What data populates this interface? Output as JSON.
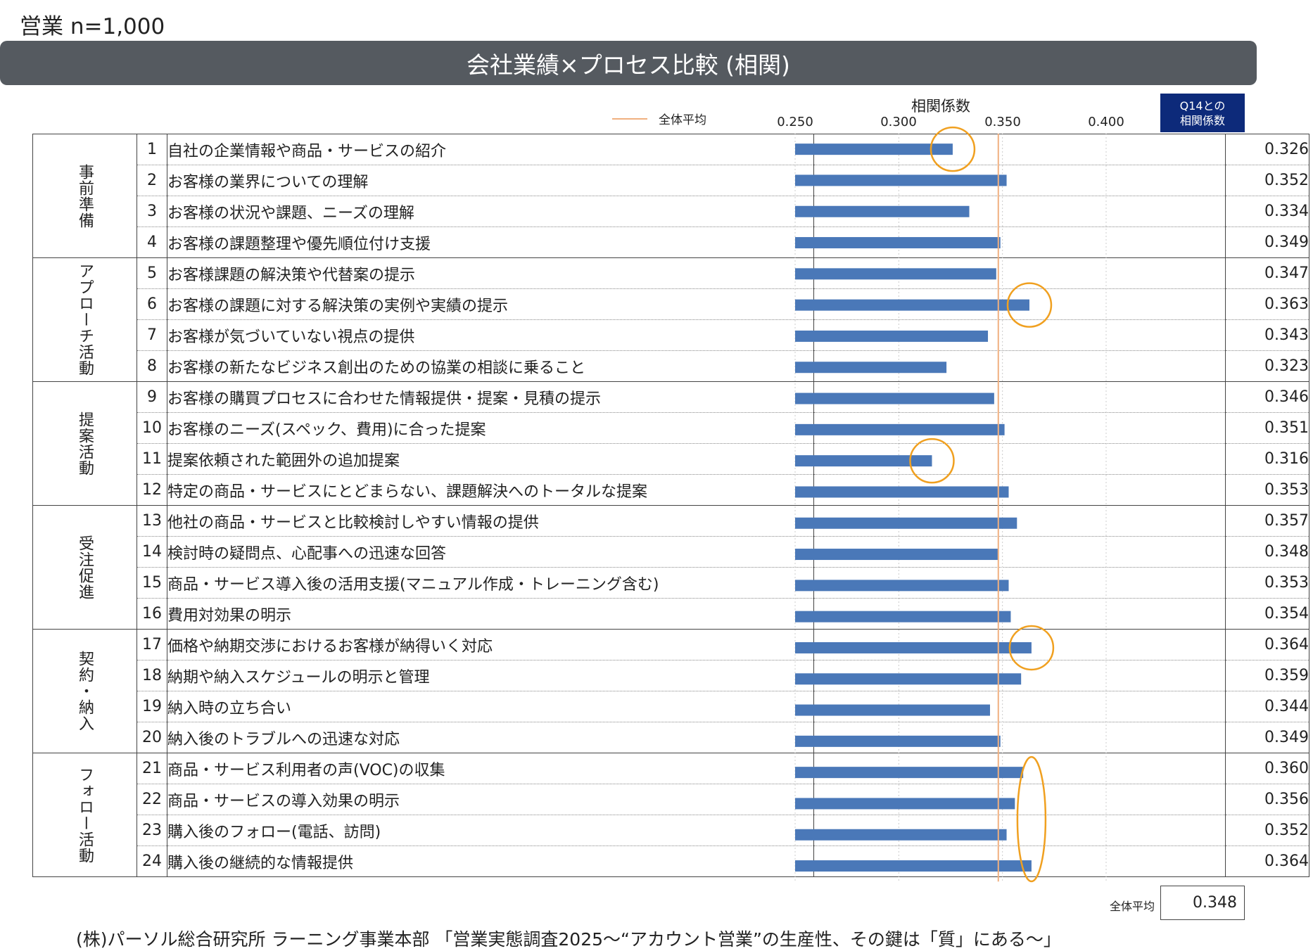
{
  "sample_label": "営業 n=1,000",
  "title": "会社業績×プロセス比較 (相関)",
  "legend_label": "全体平均",
  "q14_header": "Q14との\n相関係数",
  "overall_avg_label": "全体平均",
  "overall_avg_value": "0.348",
  "source": "(株)パーソル総合研究所 ラーニング事業本部 「営業実態調査2025～“アカウント営業”の生産性、その鍵は「質」にある～」",
  "colors": {
    "bar": "#4a78b8",
    "avg_line": "#f0b080",
    "circle": "#f0a020",
    "banner": "#555a60",
    "header": "#0d2a7a"
  },
  "categories": [
    {
      "name": "事前準備",
      "rows": 4
    },
    {
      "name": "アプローチ活動",
      "rows": 4
    },
    {
      "name": "提案活動",
      "rows": 4
    },
    {
      "name": "受注促進",
      "rows": 4
    },
    {
      "name": "契約・納入",
      "rows": 4
    },
    {
      "name": "フォロー活動",
      "rows": 4
    }
  ],
  "items": [
    {
      "no": "1",
      "label": "自社の企業情報や商品・サービスの紹介",
      "value": "0.326"
    },
    {
      "no": "2",
      "label": "お客様の業界についての理解",
      "value": "0.352"
    },
    {
      "no": "3",
      "label": "お客様の状況や課題、ニーズの理解",
      "value": "0.334"
    },
    {
      "no": "4",
      "label": "お客様の課題整理や優先順位付け支援",
      "value": "0.349"
    },
    {
      "no": "5",
      "label": "お客様課題の解決策や代替案の提示",
      "value": "0.347"
    },
    {
      "no": "6",
      "label": "お客様の課題に対する解決策の実例や実績の提示",
      "value": "0.363"
    },
    {
      "no": "7",
      "label": "お客様が気づいていない視点の提供",
      "value": "0.343"
    },
    {
      "no": "8",
      "label": "お客様の新たなビジネス創出のための協業の相談に乗ること",
      "value": "0.323"
    },
    {
      "no": "9",
      "label": "お客様の購買プロセスに合わせた情報提供・提案・見積の提示",
      "value": "0.346"
    },
    {
      "no": "10",
      "label": "お客様のニーズ(スペック、費用)に合った提案",
      "value": "0.351"
    },
    {
      "no": "11",
      "label": "提案依頼された範囲外の追加提案",
      "value": "0.316"
    },
    {
      "no": "12",
      "label": "特定の商品・サービスにとどまらない、課題解決へのトータルな提案",
      "value": "0.353"
    },
    {
      "no": "13",
      "label": "他社の商品・サービスと比較検討しやすい情報の提供",
      "value": "0.357"
    },
    {
      "no": "14",
      "label": "検討時の疑問点、心配事への迅速な回答",
      "value": "0.348"
    },
    {
      "no": "15",
      "label": "商品・サービス導入後の活用支援(マニュアル作成・トレーニング含む)",
      "value": "0.353"
    },
    {
      "no": "16",
      "label": "費用対効果の明示",
      "value": "0.354"
    },
    {
      "no": "17",
      "label": "価格や納期交渉におけるお客様が納得いく対応",
      "value": "0.364"
    },
    {
      "no": "18",
      "label": "納期や納入スケジュールの明示と管理",
      "value": "0.359"
    },
    {
      "no": "19",
      "label": "納入時の立ち合い",
      "value": "0.344"
    },
    {
      "no": "20",
      "label": "納入後のトラブルへの迅速な対応",
      "value": "0.349"
    },
    {
      "no": "21",
      "label": "商品・サービス利用者の声(VOC)の収集",
      "value": "0.360"
    },
    {
      "no": "22",
      "label": "商品・サービスの導入効果の明示",
      "value": "0.356"
    },
    {
      "no": "23",
      "label": "購入後のフォロー(電話、訪問)",
      "value": "0.352"
    },
    {
      "no": "24",
      "label": "購入後の継続的な情報提供",
      "value": "0.364"
    }
  ],
  "chart_data": {
    "type": "bar",
    "orientation": "horizontal",
    "title": "会社業績×プロセス比較 (相関)",
    "xlabel": "相関係数",
    "xlim": [
      0.25,
      0.4
    ],
    "xticks": [
      "0.250",
      "0.300",
      "0.350",
      "0.400"
    ],
    "tick_values": [
      0.25,
      0.3,
      0.35,
      0.4
    ],
    "reference_line": {
      "name": "全体平均",
      "value": 0.348
    },
    "categories": [
      "1",
      "2",
      "3",
      "4",
      "5",
      "6",
      "7",
      "8",
      "9",
      "10",
      "11",
      "12",
      "13",
      "14",
      "15",
      "16",
      "17",
      "18",
      "19",
      "20",
      "21",
      "22",
      "23",
      "24"
    ],
    "values": [
      0.326,
      0.352,
      0.334,
      0.349,
      0.347,
      0.363,
      0.343,
      0.323,
      0.346,
      0.351,
      0.316,
      0.353,
      0.357,
      0.348,
      0.353,
      0.354,
      0.364,
      0.359,
      0.344,
      0.349,
      0.36,
      0.356,
      0.352,
      0.364
    ],
    "highlighted": [
      1,
      6,
      11,
      17
    ],
    "highlighted_group": [
      21,
      22,
      23,
      24
    ]
  }
}
